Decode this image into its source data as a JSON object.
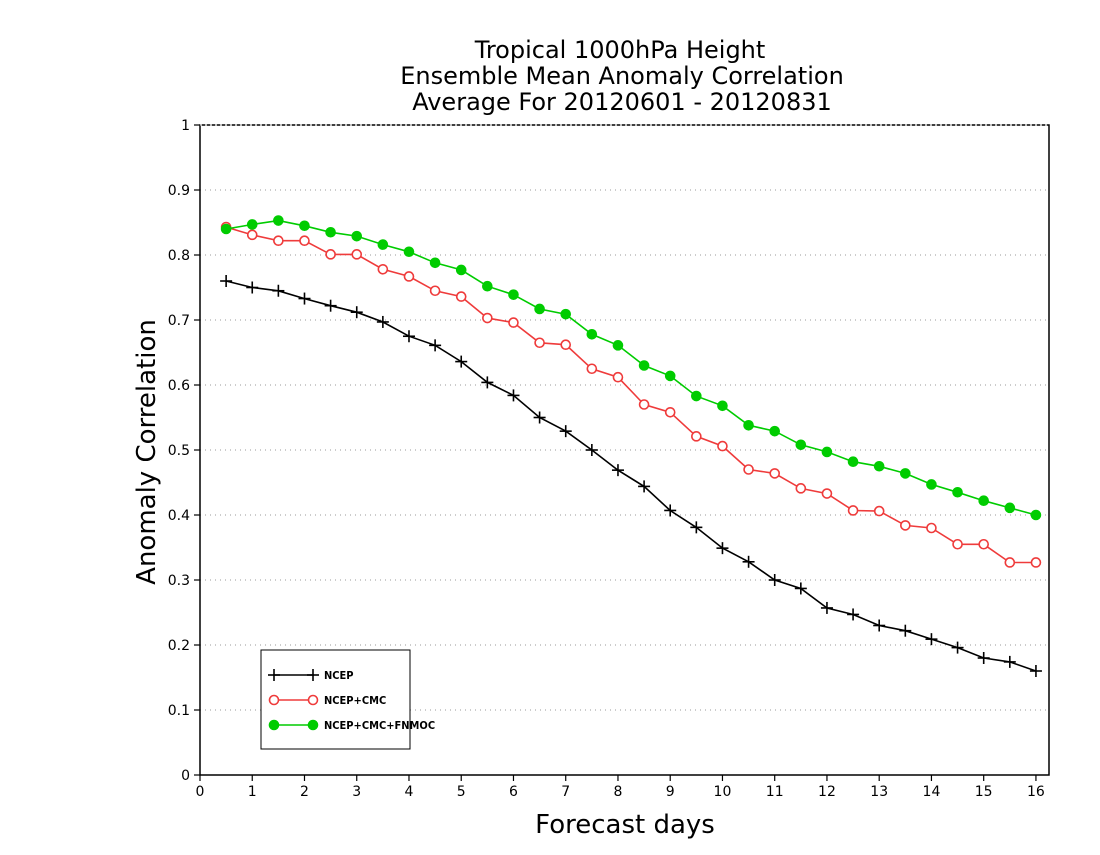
{
  "chart_data": {
    "type": "line",
    "title": [
      "Tropical 1000hPa Height",
      "Ensemble Mean Anomaly Correlation",
      "Average For 20120601 - 20120831"
    ],
    "xlabel": "Forecast days",
    "ylabel": "Anomaly Correlation",
    "xlim": [
      0,
      16.25
    ],
    "ylim": [
      0,
      1
    ],
    "x_ticks": [
      "0",
      "1",
      "2",
      "3",
      "4",
      "5",
      "6",
      "7",
      "8",
      "9",
      "10",
      "11",
      "12",
      "13",
      "14",
      "15",
      "16"
    ],
    "y_ticks": [
      "0",
      "0.1",
      "0.2",
      "0.3",
      "0.4",
      "0.5",
      "0.6",
      "0.7",
      "0.8",
      "0.9",
      "1"
    ],
    "grid": "horizontal dotted",
    "legend_position": "bottom-left",
    "x": [
      0.5,
      1,
      1.5,
      2,
      2.5,
      3,
      3.5,
      4,
      4.5,
      5,
      5.5,
      6,
      6.5,
      7,
      7.5,
      8,
      8.5,
      9,
      9.5,
      10,
      10.5,
      11,
      11.5,
      12,
      12.5,
      13,
      13.5,
      14,
      14.5,
      15,
      15.5,
      16
    ],
    "series": [
      {
        "name": "NCEP",
        "color": "#000000",
        "marker": "plus",
        "values": [
          0.76,
          0.75,
          0.745,
          0.733,
          0.722,
          0.712,
          0.697,
          0.675,
          0.661,
          0.636,
          0.604,
          0.584,
          0.55,
          0.529,
          0.5,
          0.469,
          0.444,
          0.407,
          0.381,
          0.349,
          0.328,
          0.3,
          0.287,
          0.257,
          0.247,
          0.23,
          0.222,
          0.209,
          0.196,
          0.18,
          0.174,
          0.16
        ]
      },
      {
        "name": "NCEP+CMC",
        "color": "#ef3b3b",
        "marker": "open-circle",
        "values": [
          0.843,
          0.831,
          0.822,
          0.822,
          0.801,
          0.801,
          0.778,
          0.767,
          0.745,
          0.736,
          0.703,
          0.696,
          0.665,
          0.662,
          0.625,
          0.612,
          0.57,
          0.558,
          0.521,
          0.506,
          0.47,
          0.464,
          0.441,
          0.433,
          0.407,
          0.406,
          0.384,
          0.38,
          0.355,
          0.355,
          0.327,
          0.327
        ]
      },
      {
        "name": "NCEP+CMC+FNMOC",
        "color": "#00cc00",
        "marker": "filled-circle",
        "values": [
          0.84,
          0.847,
          0.853,
          0.845,
          0.835,
          0.829,
          0.816,
          0.805,
          0.788,
          0.777,
          0.752,
          0.739,
          0.717,
          0.709,
          0.678,
          0.661,
          0.63,
          0.614,
          0.583,
          0.568,
          0.538,
          0.529,
          0.508,
          0.497,
          0.482,
          0.475,
          0.464,
          0.447,
          0.435,
          0.422,
          0.411,
          0.4
        ]
      }
    ]
  }
}
